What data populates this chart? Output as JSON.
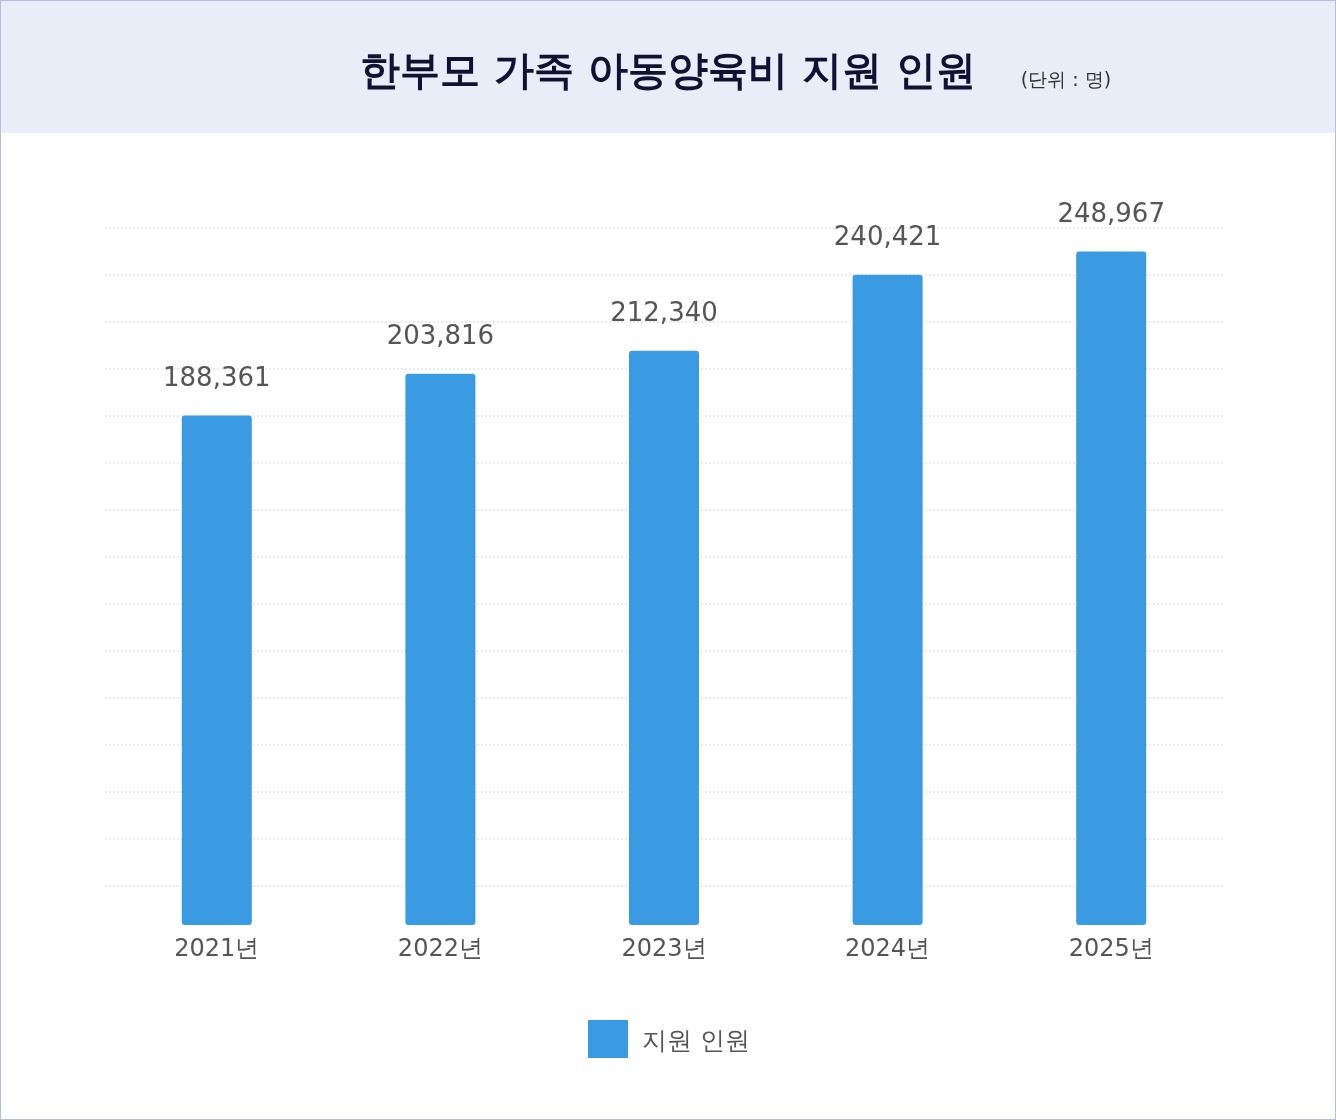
{
  "chart_data": {
    "type": "bar",
    "title": "한부모 가족 아동양육비 지원 인원",
    "subtitle": "(단위 : 명)",
    "categories": [
      "2021년",
      "2022년",
      "2023년",
      "2024년",
      "2025년"
    ],
    "series": [
      {
        "name": "지원 인원",
        "color": "#3a9be3",
        "values": [
          188361,
          203816,
          212340,
          240421,
          248967
        ],
        "value_labels": [
          "188,361",
          "203,816",
          "212,340",
          "240,421",
          "248,967"
        ]
      }
    ],
    "grid": "y",
    "legend": "bottom"
  }
}
